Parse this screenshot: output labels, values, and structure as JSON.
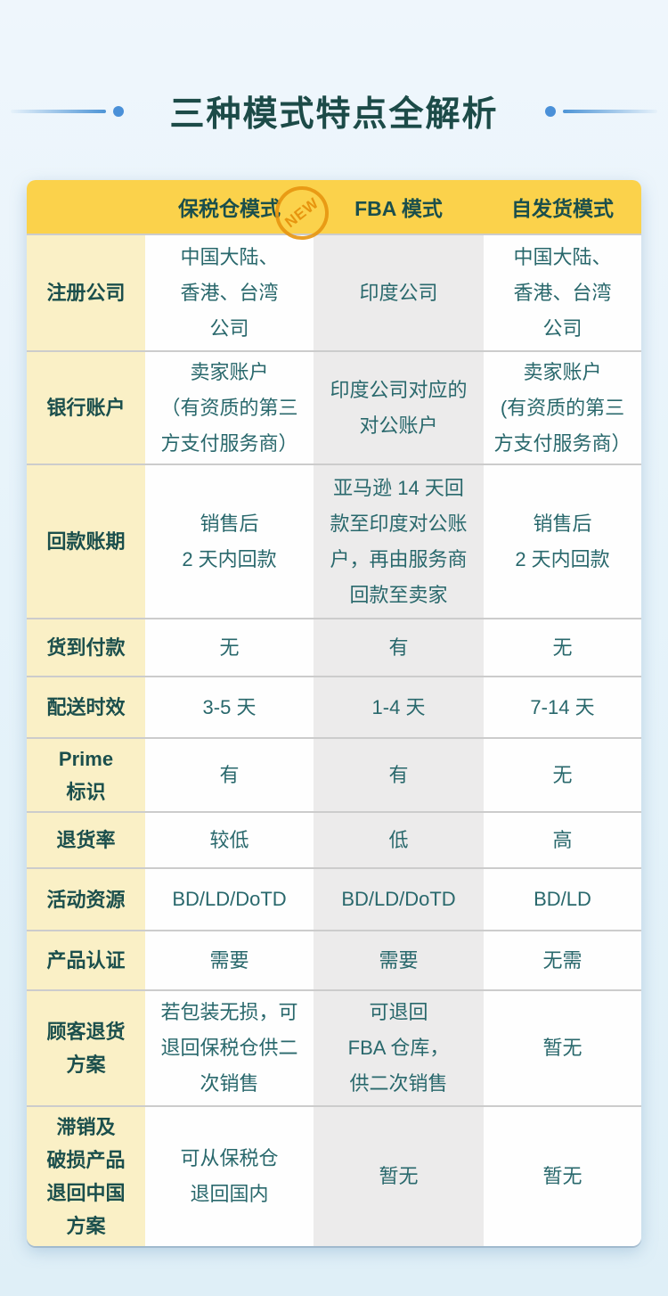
{
  "title": "三种模式特点全解析",
  "badge": "NEW",
  "table": {
    "columns": [
      "保税仓模式",
      "FBA 模式",
      "自发货模式"
    ],
    "rows": [
      {
        "label": "注册公司",
        "cells": [
          "中国大陆、\n香港、台湾\n公司",
          "印度公司",
          "中国大陆、\n香港、台湾\n公司"
        ]
      },
      {
        "label": "银行账户",
        "cells": [
          "卖家账户\n（有资质的第三\n方支付服务商）",
          "印度公司对应的\n对公账户",
          "卖家账户\n(有资质的第三\n方支付服务商）"
        ]
      },
      {
        "label": "回款账期",
        "cells": [
          "销售后\n2 天内回款",
          "亚马逊 14 天回\n款至印度对公账\n户，再由服务商\n回款至卖家",
          "销售后\n2 天内回款"
        ]
      },
      {
        "label": "货到付款",
        "cells": [
          "无",
          "有",
          "无"
        ]
      },
      {
        "label": "配送时效",
        "cells": [
          "3-5 天",
          "1-4 天",
          "7-14 天"
        ]
      },
      {
        "label": "Prime\n标识",
        "cells": [
          "有",
          "有",
          "无"
        ]
      },
      {
        "label": "退货率",
        "cells": [
          "较低",
          "低",
          "高"
        ]
      },
      {
        "label": "活动资源",
        "cells": [
          "BD/LD/DoTD",
          "BD/LD/DoTD",
          "BD/LD"
        ]
      },
      {
        "label": "产品认证",
        "cells": [
          "需要",
          "需要",
          "无需"
        ]
      },
      {
        "label": "顾客退货\n方案",
        "cells": [
          "若包装无损，可\n退回保税仓供二\n次销售",
          "可退回\nFBA 仓库，\n供二次销售",
          "暂无"
        ]
      },
      {
        "label": "滞销及\n破损产品\n退回中国\n方案",
        "cells": [
          "可从保税仓\n退回国内",
          "暂无",
          "暂无"
        ]
      }
    ]
  },
  "chart_data": {
    "type": "table",
    "title": "三种模式特点全解析",
    "columns": [
      "",
      "保税仓模式 (NEW)",
      "FBA 模式",
      "自发货模式"
    ],
    "rows": [
      [
        "注册公司",
        "中国大陆、香港、台湾公司",
        "印度公司",
        "中国大陆、香港、台湾公司"
      ],
      [
        "银行账户",
        "卖家账户（有资质的第三方支付服务商）",
        "印度公司对应的对公账户",
        "卖家账户(有资质的第三方支付服务商）"
      ],
      [
        "回款账期",
        "销售后 2 天内回款",
        "亚马逊 14 天回款至印度对公账户，再由服务商回款至卖家",
        "销售后 2 天内回款"
      ],
      [
        "货到付款",
        "无",
        "有",
        "无"
      ],
      [
        "配送时效",
        "3-5 天",
        "1-4 天",
        "7-14 天"
      ],
      [
        "Prime 标识",
        "有",
        "有",
        "无"
      ],
      [
        "退货率",
        "较低",
        "低",
        "高"
      ],
      [
        "活动资源",
        "BD/LD/DoTD",
        "BD/LD/DoTD",
        "BD/LD"
      ],
      [
        "产品认证",
        "需要",
        "需要",
        "无需"
      ],
      [
        "顾客退货方案",
        "若包装无损，可退回保税仓供二次销售",
        "可退回 FBA 仓库，供二次销售",
        "暂无"
      ],
      [
        "滞销及破损产品退回中国方案",
        "可从保税仓退回国内",
        "暂无",
        "暂无"
      ]
    ]
  },
  "colors": {
    "header_yellow": "#FBD24B",
    "label_yellow": "#FAF0C6",
    "gray_column": "#ECEBEB",
    "title_teal": "#1C4B48",
    "cell_teal": "#29686C",
    "stamp_orange": "#E7950F",
    "decoration_blue": "#4A90D8",
    "page_background": "#E6F3FA"
  }
}
